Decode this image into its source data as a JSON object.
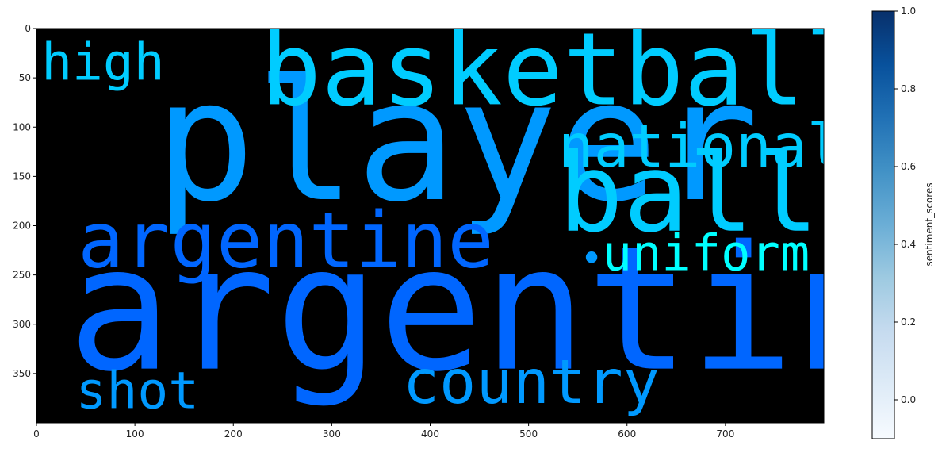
{
  "chart_data": {
    "type": "wordcloud",
    "background": "#000000",
    "xlim": [
      0,
      800
    ],
    "ylim": [
      400,
      0
    ],
    "xticks": [
      0,
      100,
      200,
      300,
      400,
      500,
      600,
      700
    ],
    "yticks": [
      0,
      50,
      100,
      150,
      200,
      250,
      300,
      350
    ],
    "words": [
      {
        "text": "argentina",
        "x": 32,
        "y": 345,
        "size": 175,
        "color": "#0066ff"
      },
      {
        "text": "player",
        "x": 120,
        "y": 173,
        "size": 170,
        "color": "#0099ff"
      },
      {
        "text": "basketball",
        "x": 228,
        "y": 77,
        "size": 102,
        "color": "#00ccff"
      },
      {
        "text": "ball",
        "x": 530,
        "y": 205,
        "size": 110,
        "color": "#00ccff"
      },
      {
        "text": "national",
        "x": 530,
        "y": 140,
        "size": 60,
        "color": "#00ccff"
      },
      {
        "text": "argentine",
        "x": 42,
        "y": 242,
        "size": 78,
        "color": "#0066ff"
      },
      {
        "text": "uniform",
        "x": 575,
        "y": 245,
        "size": 50,
        "color": "#00ffff"
      },
      {
        "text": "high",
        "x": 5,
        "y": 52,
        "size": 52,
        "color": "#00ccff"
      },
      {
        "text": "country",
        "x": 372,
        "y": 380,
        "size": 62,
        "color": "#0099ff"
      },
      {
        "text": "shot",
        "x": 40,
        "y": 385,
        "size": 52,
        "color": "#0099ff"
      },
      {
        "text": "•",
        "x": 552,
        "y": 247,
        "size": 40,
        "color": "#0099ff"
      }
    ],
    "colorbar": {
      "label": "sentiment_scores",
      "range": [
        -0.1,
        1.0
      ],
      "ticks": [
        0.0,
        0.2,
        0.4,
        0.6,
        0.8,
        1.0
      ],
      "tick_labels": [
        "0.0",
        "0.2",
        "0.4",
        "0.6",
        "0.8",
        "1.0"
      ],
      "colormap": [
        "#f7fbff",
        "#deebf7",
        "#c6dbef",
        "#9ecae1",
        "#6baed6",
        "#4292c6",
        "#2171b5",
        "#08519c",
        "#08306b"
      ]
    }
  }
}
